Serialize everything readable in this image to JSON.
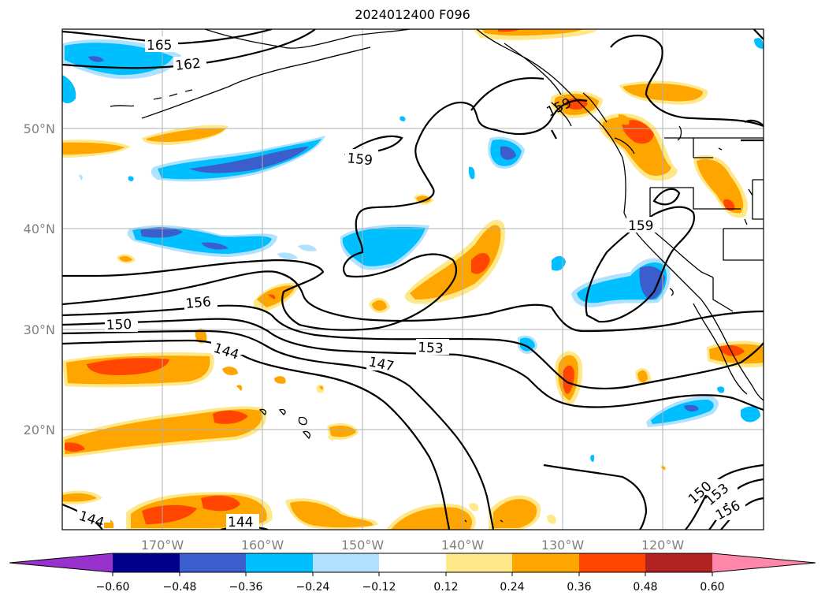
{
  "title": "2024012400 F096",
  "map": {
    "lon_labels": [
      "170°W",
      "160°W",
      "150°W",
      "140°W",
      "130°W",
      "120°W"
    ],
    "lat_labels": [
      "50°N",
      "40°N",
      "30°N",
      "20°N"
    ],
    "contour_labels": [
      "165",
      "162",
      "159",
      "159",
      "159",
      "156",
      "150",
      "144",
      "153",
      "147",
      "144",
      "144",
      "150",
      "153",
      "156"
    ]
  },
  "colorbar": {
    "tick_labels": [
      "−0.60",
      "−0.48",
      "−0.36",
      "−0.24",
      "−0.12",
      "0.12",
      "0.24",
      "0.36",
      "0.48",
      "0.60"
    ],
    "colors": [
      "#9932cc",
      "#00008b",
      "#3a5fcd",
      "#00bfff",
      "#b0e2ff",
      "#ffffff",
      "#ffe88a",
      "#ffa500",
      "#ff4500",
      "#b22222",
      "#ff88aa"
    ]
  }
}
